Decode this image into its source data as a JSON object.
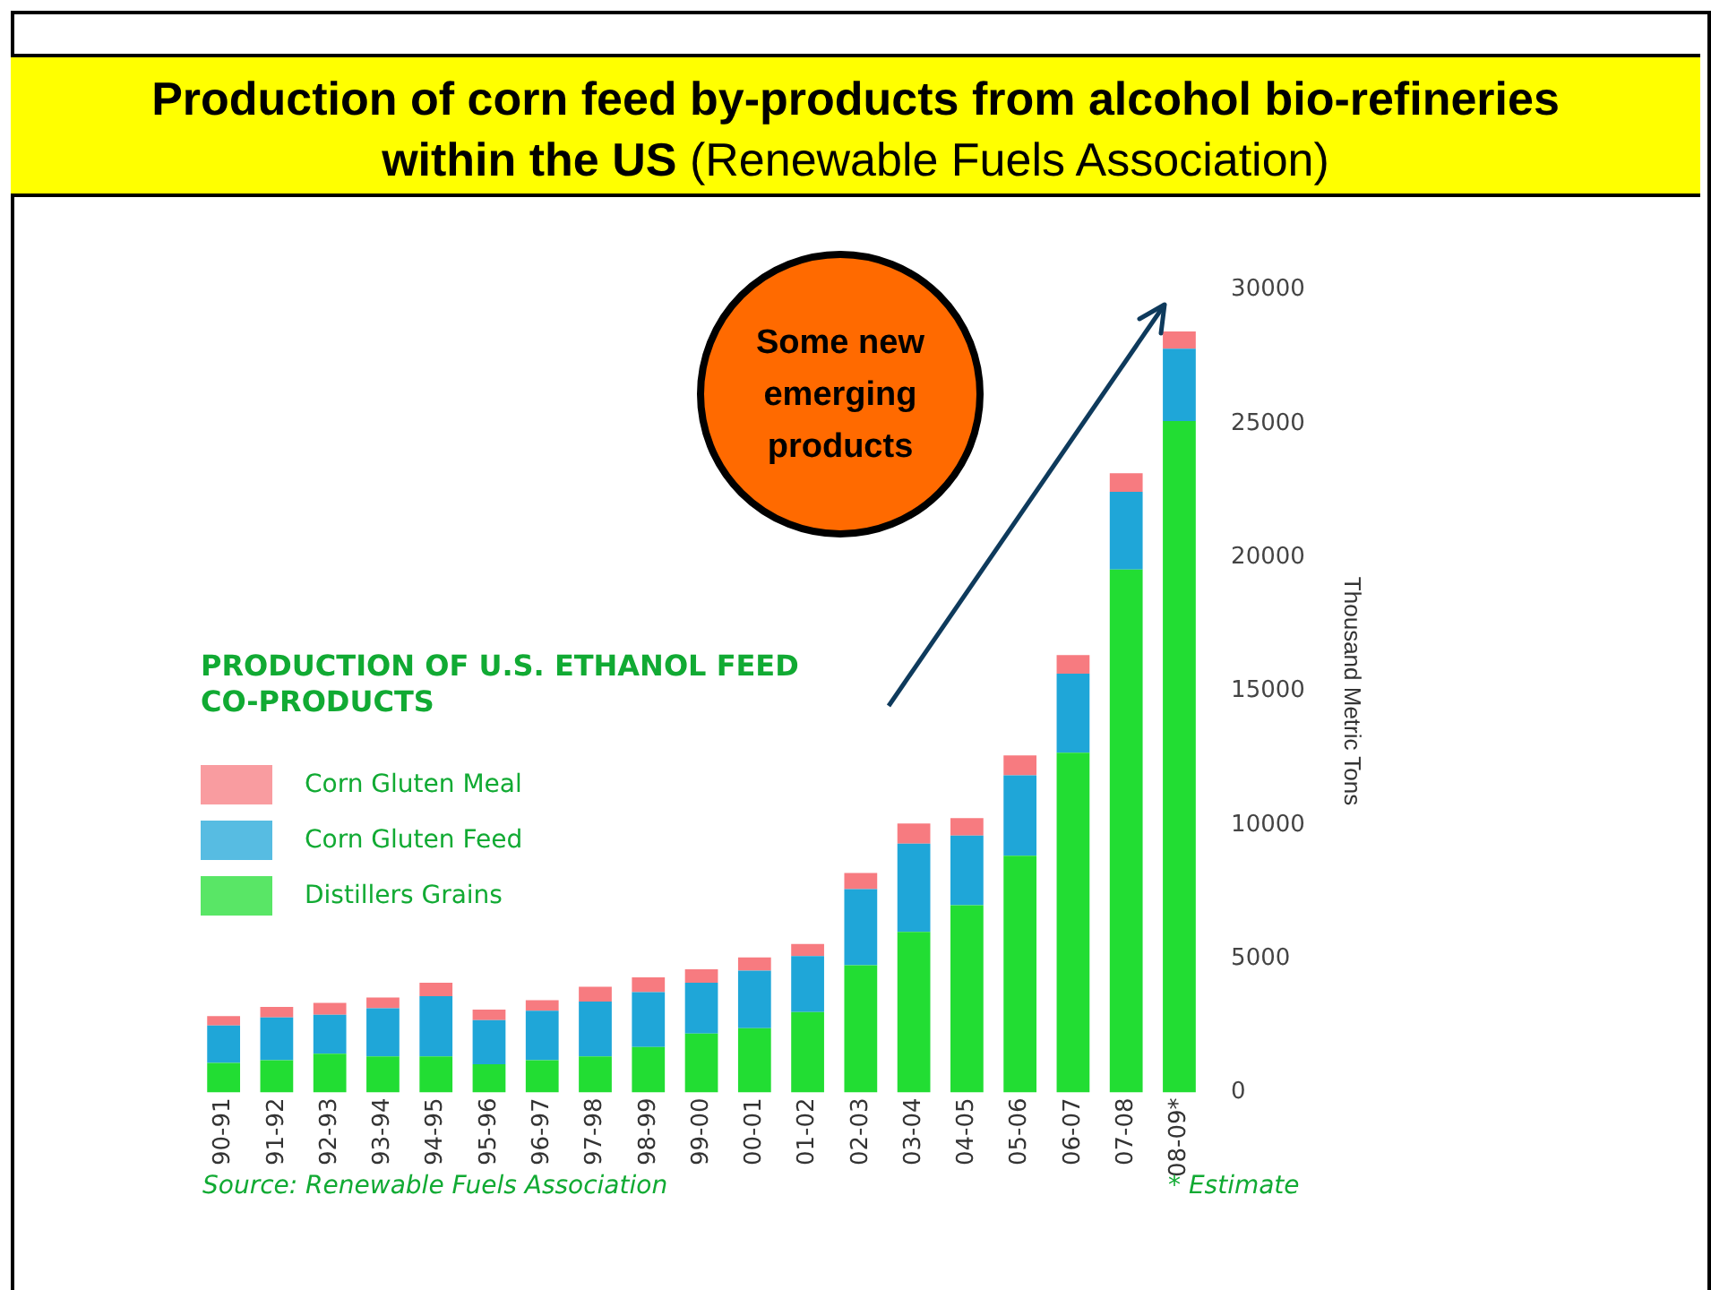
{
  "chart_data": {
    "type": "bar",
    "title": "Production of corn feed by-products from alcohol bio-refineries within the US",
    "subtitle": "(Renewable Fuels Association)",
    "legend_title": "PRODUCTION OF U.S. ETHANOL FEED CO-PRODUCTS",
    "ylabel": "Thousand Metric Tons",
    "categories": [
      "90-91",
      "91-92",
      "92-93",
      "93-94",
      "94-95",
      "95-96",
      "96-97",
      "97-98",
      "98-99",
      "99-00",
      "00-01",
      "01-02",
      "02-03",
      "03-04",
      "04-05",
      "05-06",
      "06-07",
      "07-08",
      "08-09*"
    ],
    "series": [
      {
        "name": "Distillers Grains",
        "color": "#22dd33",
        "values": [
          1100,
          1200,
          1450,
          1350,
          1350,
          1050,
          1200,
          1350,
          1700,
          2200,
          2400,
          3000,
          4750,
          6000,
          7000,
          8850,
          12700,
          19550,
          25100
        ]
      },
      {
        "name": "Corn Gluten Feed",
        "color": "#1fa6d8",
        "values": [
          1400,
          1600,
          1450,
          1800,
          2250,
          1650,
          1850,
          2050,
          2050,
          1900,
          2150,
          2100,
          2850,
          3300,
          2600,
          3000,
          2950,
          2900,
          2700
        ]
      },
      {
        "name": "Corn Gluten Meal",
        "color": "#f77b80",
        "values": [
          350,
          400,
          450,
          400,
          500,
          400,
          400,
          550,
          550,
          500,
          500,
          450,
          600,
          750,
          650,
          750,
          700,
          700,
          650
        ]
      }
    ],
    "stacked": true,
    "ylim": [
      0,
      30000
    ],
    "yticks": [
      0,
      5000,
      10000,
      15000,
      20000,
      25000,
      30000
    ],
    "grid": false,
    "legend": "left",
    "annotations": [
      "Some new emerging products",
      "Source: Renewable Fuels Association",
      "* Estimate"
    ]
  }
}
